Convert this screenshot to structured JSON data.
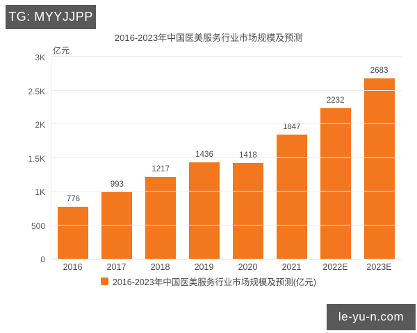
{
  "watermark_top": {
    "text": "TG: MYYJJPP"
  },
  "watermark_bottom": {
    "text": "le-yu-n.com"
  },
  "colors": {
    "bar": "#f2771e",
    "banner_bg": "#595959",
    "banner_text": "#ffffff",
    "grid": "#ededed",
    "axis_line": "#dedede",
    "title_text": "#4c4c4c",
    "tick_text": "#595959",
    "value_text": "#4d4d4d"
  },
  "chart_data": {
    "type": "bar",
    "title": "2016-2023年中国医美服务行业市场规模及预测",
    "unit_label": "亿元",
    "categories": [
      "2016",
      "2017",
      "2018",
      "2019",
      "2020",
      "2021",
      "2022E",
      "2023E"
    ],
    "values": [
      776,
      993,
      1217,
      1436,
      1418,
      1847,
      2232,
      2683
    ],
    "ylim": [
      0,
      3000
    ],
    "ytick_values": [
      0,
      500,
      1000,
      1500,
      2000,
      2500,
      3000
    ],
    "ytick_labels": [
      "0",
      "500",
      "1K",
      "1.5K",
      "2K",
      "2.5K",
      "3K"
    ],
    "legend": [
      "2016-2023年中国医美服务行业市场规模及预测(亿元)"
    ],
    "legend_position": "bottom",
    "grid": true,
    "bar_color": "#f2771e"
  }
}
